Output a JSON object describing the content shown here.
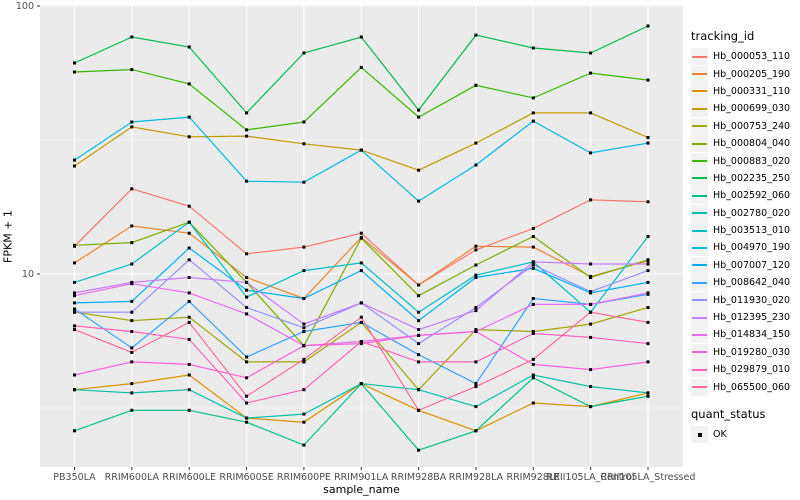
{
  "chart_data": {
    "type": "line",
    "title": "",
    "xlabel": "sample_name",
    "ylabel": "FPKM + 1",
    "y_scale": "log10",
    "y_axis_ticks": [
      {
        "value": 10,
        "label": "10"
      },
      {
        "value": 100,
        "label": "100"
      }
    ],
    "y_minor_gridlines": [
      3.162,
      31.623
    ],
    "ylim": [
      1.8,
      105
    ],
    "grid": "on",
    "panel_bg": "#EBEBEB",
    "grid_color": "#FFFFFF",
    "point_color": "#000000",
    "categories": [
      "PB350LA",
      "RRIM600LA",
      "RRIM600LE",
      "RRIM600SE",
      "RRIM600PE",
      "RRIM901LA",
      "RRIM928BA",
      "RRIM928LA",
      "RRIM928LE",
      "RRII105LA_Control",
      "RRII105LA_Stressed"
    ],
    "legend": {
      "title": "tracking_id",
      "position": "right"
    },
    "quant_legend": {
      "title": "quant_status",
      "items": [
        {
          "label": "OK",
          "marker": "black-square"
        }
      ]
    },
    "series": [
      {
        "name": "Hb_000053_110",
        "color": "#F8766D",
        "values": [
          12.7,
          20.8,
          17.9,
          11.9,
          12.6,
          14.2,
          9.1,
          12.3,
          14.8,
          18.9,
          18.6
        ]
      },
      {
        "name": "Hb_000205_190",
        "color": "#EA8331",
        "values": [
          11.0,
          15.1,
          14.2,
          9.7,
          8.1,
          13.7,
          9.1,
          12.7,
          12.6,
          9.8,
          11.2
        ]
      },
      {
        "name": "Hb_000331_110",
        "color": "#D89000",
        "values": [
          3.7,
          3.9,
          4.2,
          2.9,
          2.8,
          3.9,
          3.1,
          2.6,
          3.3,
          3.2,
          3.6
        ]
      },
      {
        "name": "Hb_000699_030",
        "color": "#C09B00",
        "values": [
          25.3,
          35.4,
          32.5,
          32.7,
          30.6,
          29.0,
          24.4,
          30.8,
          39.9,
          39.9,
          32.3
        ]
      },
      {
        "name": "Hb_000753_240",
        "color": "#A3A500",
        "values": [
          7.2,
          6.7,
          6.9,
          4.7,
          4.7,
          6.6,
          3.7,
          6.2,
          6.1,
          6.5,
          7.5
        ]
      },
      {
        "name": "Hb_000804_040",
        "color": "#7CAE00",
        "values": [
          12.8,
          13.1,
          15.6,
          9.3,
          5.4,
          13.6,
          8.3,
          10.8,
          13.8,
          9.7,
          11.3
        ]
      },
      {
        "name": "Hb_000883_020",
        "color": "#39B600",
        "values": [
          56.7,
          57.9,
          51.2,
          34.5,
          36.9,
          59.0,
          38.5,
          50.6,
          45.4,
          56.2,
          52.9
        ]
      },
      {
        "name": "Hb_002235_250",
        "color": "#00BB4E",
        "values": [
          61.3,
          76.6,
          70.3,
          39.9,
          66.8,
          76.6,
          40.9,
          77.9,
          69.7,
          66.8,
          84.2
        ]
      },
      {
        "name": "Hb_002592_060",
        "color": "#00C087",
        "values": [
          2.6,
          3.1,
          3.1,
          2.8,
          2.3,
          3.9,
          2.2,
          2.6,
          4.1,
          3.2,
          3.5
        ]
      },
      {
        "name": "Hb_002780_020",
        "color": "#00C1A9",
        "values": [
          3.7,
          3.6,
          3.7,
          2.9,
          3.0,
          3.9,
          3.7,
          3.2,
          4.2,
          3.8,
          3.6
        ]
      },
      {
        "name": "Hb_003513_010",
        "color": "#00BFC4",
        "values": [
          9.3,
          10.9,
          15.6,
          8.2,
          10.3,
          11.0,
          7.2,
          9.9,
          11.1,
          7.2,
          13.8
        ]
      },
      {
        "name": "Hb_004970_190",
        "color": "#00BAE0",
        "values": [
          26.6,
          36.9,
          38.5,
          22.2,
          22.0,
          29.0,
          18.7,
          25.5,
          37.2,
          28.3,
          30.8
        ]
      },
      {
        "name": "Hb_007007_120",
        "color": "#00B0F6",
        "values": [
          7.8,
          7.9,
          12.5,
          8.7,
          8.1,
          10.3,
          6.7,
          9.7,
          10.5,
          8.5,
          9.3
        ]
      },
      {
        "name": "Hb_008642_040",
        "color": "#35A2FF",
        "values": [
          7.4,
          5.3,
          7.9,
          4.9,
          6.1,
          6.6,
          5.0,
          3.9,
          8.1,
          7.7,
          8.4
        ]
      },
      {
        "name": "Hb_011930_020",
        "color": "#9590FF",
        "values": [
          7.2,
          7.2,
          11.3,
          7.5,
          6.3,
          7.8,
          5.5,
          7.5,
          10.8,
          8.6,
          10.3
        ]
      },
      {
        "name": "Hb_012395_230",
        "color": "#C77CFF",
        "values": [
          8.5,
          9.3,
          9.7,
          9.3,
          6.5,
          7.8,
          6.2,
          7.3,
          11.1,
          10.9,
          10.9
        ]
      },
      {
        "name": "Hb_014834_150",
        "color": "#E76BF3",
        "values": [
          8.3,
          9.2,
          8.5,
          7.1,
          5.4,
          5.6,
          5.9,
          6.1,
          7.7,
          7.7,
          8.5
        ]
      },
      {
        "name": "Hb_019280_030",
        "color": "#FA62DB",
        "values": [
          4.2,
          4.7,
          4.6,
          4.1,
          5.4,
          5.5,
          5.9,
          6.1,
          4.6,
          4.4,
          4.7
        ]
      },
      {
        "name": "Hb_029879_010",
        "color": "#FF62BC",
        "values": [
          6.4,
          6.1,
          5.7,
          3.3,
          3.7,
          5.6,
          4.7,
          4.7,
          6.0,
          5.8,
          5.5
        ]
      },
      {
        "name": "Hb_065500_060",
        "color": "#FF6A98",
        "values": [
          6.2,
          5.1,
          6.6,
          3.5,
          4.8,
          6.9,
          3.1,
          3.8,
          4.8,
          7.2,
          6.6
        ]
      }
    ]
  }
}
